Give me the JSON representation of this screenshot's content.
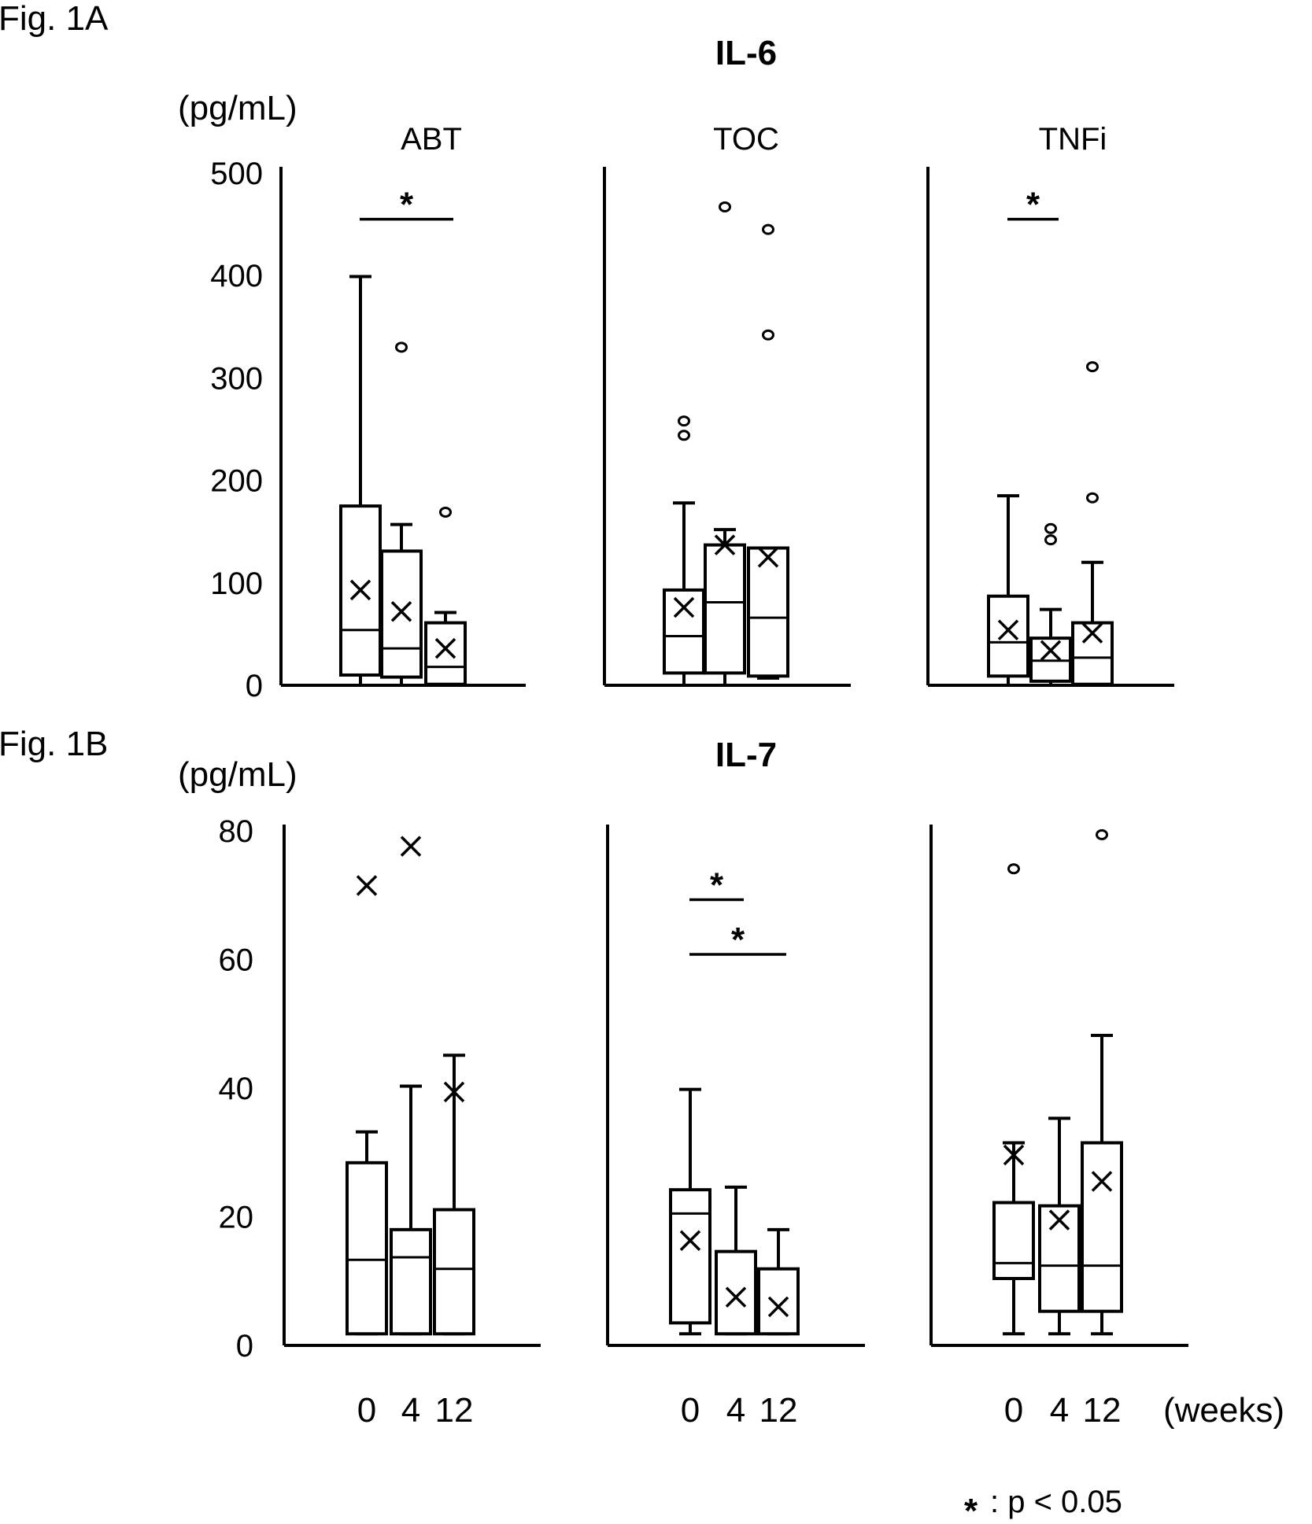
{
  "figure": {
    "fig_a_label": "Fig. 1A",
    "fig_b_label": "Fig. 1B",
    "x_unit_label": "(weeks)",
    "footnote_star": "*",
    "footnote_text": ": p < 0.05",
    "colors": {
      "ink": "#000000",
      "background": "#ffffff"
    }
  },
  "chart_data": [
    {
      "type": "box",
      "id": "A",
      "title": "IL-6",
      "ylabel": "(pg/mL)",
      "ylim": [
        0,
        500
      ],
      "yticks": [
        "0",
        "100",
        "200",
        "300",
        "400",
        "500"
      ],
      "ytick_values": [
        0,
        100,
        200,
        300,
        400,
        500
      ],
      "categories": [
        "0",
        "4",
        "12"
      ],
      "panels": [
        {
          "name": "ABT",
          "boxes": [
            {
              "week": "0",
              "min": 0,
              "q1": 10,
              "median": 54,
              "q3": 175,
              "max": 399,
              "mean": 93,
              "outliers": []
            },
            {
              "week": "4",
              "min": 0,
              "q1": 8,
              "median": 36,
              "q3": 131,
              "max": 157,
              "mean": 72,
              "outliers": [
                330
              ]
            },
            {
              "week": "12",
              "min": 0,
              "q1": 1,
              "median": 18,
              "q3": 61,
              "max": 71,
              "mean": 36,
              "outliers": [
                169
              ]
            }
          ],
          "significance": [
            {
              "from": 0,
              "to": 2,
              "level": 455,
              "label": "*"
            }
          ]
        },
        {
          "name": "TOC",
          "boxes": [
            {
              "week": "0",
              "min": 0,
              "q1": 12,
              "median": 48,
              "q3": 93,
              "max": 178,
              "mean": 76,
              "outliers": [
                244,
                258
              ]
            },
            {
              "week": "4",
              "min": 0,
              "q1": 12,
              "median": 81,
              "q3": 137,
              "max": 152,
              "mean": 137,
              "outliers": [
                467
              ]
            },
            {
              "week": "12",
              "min": 7,
              "q1": 9,
              "median": 66,
              "q3": 134,
              "max": 134,
              "mean": 125,
              "outliers": [
                342,
                445
              ]
            }
          ],
          "significance": []
        },
        {
          "name": "TNFi",
          "boxes": [
            {
              "week": "0",
              "min": 0,
              "q1": 9,
              "median": 42,
              "q3": 87,
              "max": 185,
              "mean": 54,
              "outliers": []
            },
            {
              "week": "4",
              "min": 0,
              "q1": 4,
              "median": 24,
              "q3": 46,
              "max": 74,
              "mean": 34,
              "outliers": [
                142,
                153
              ]
            },
            {
              "week": "12",
              "min": 0,
              "q1": 1,
              "median": 27,
              "q3": 61,
              "max": 120,
              "mean": 51,
              "outliers": [
                183,
                311
              ]
            }
          ],
          "significance": [
            {
              "from": 0,
              "to": 1,
              "level": 455,
              "label": "*"
            }
          ]
        }
      ]
    },
    {
      "type": "box",
      "id": "B",
      "title": "IL-7",
      "ylabel": "(pg/mL)",
      "ylim": [
        0,
        80
      ],
      "yticks": [
        "0",
        "20",
        "40",
        "60",
        "80"
      ],
      "ytick_values": [
        0,
        20,
        40,
        60,
        80
      ],
      "categories": [
        "0",
        "4",
        "12"
      ],
      "panels": [
        {
          "name": "ABT",
          "boxes": [
            {
              "week": "0",
              "min": 1.8,
              "q1": 1.8,
              "median": 13.3,
              "q3": 28.4,
              "max": 33.2,
              "mean": 71.5,
              "outliers": []
            },
            {
              "week": "4",
              "min": 1.8,
              "q1": 1.8,
              "median": 13.7,
              "q3": 18.0,
              "max": 40.3,
              "mean": 77.6,
              "outliers": []
            },
            {
              "week": "12",
              "min": 1.8,
              "q1": 1.8,
              "median": 11.9,
              "q3": 21.1,
              "max": 45.1,
              "mean": 39.4,
              "outliers": []
            }
          ],
          "significance": []
        },
        {
          "name": "TOC",
          "boxes": [
            {
              "week": "0",
              "min": 1.8,
              "q1": 3.5,
              "median": 20.5,
              "q3": 24.2,
              "max": 39.8,
              "mean": 16.3,
              "outliers": []
            },
            {
              "week": "4",
              "min": 1.8,
              "q1": 1.8,
              "median": 1.8,
              "q3": 14.6,
              "max": 24.6,
              "mean": 7.5,
              "outliers": []
            },
            {
              "week": "12",
              "min": 1.8,
              "q1": 1.8,
              "median": 1.8,
              "q3": 11.9,
              "max": 18.0,
              "mean": 6.0,
              "outliers": []
            }
          ],
          "significance": [
            {
              "from": 0,
              "to": 1,
              "level": 69.3,
              "label": "*"
            },
            {
              "from": 0,
              "to": 2,
              "level": 60.8,
              "label": "*"
            }
          ]
        },
        {
          "name": "TNFi",
          "boxes": [
            {
              "week": "0",
              "min": 1.8,
              "q1": 10.4,
              "median": 12.8,
              "q3": 22.2,
              "max": 31.5,
              "mean": 29.6,
              "outliers": [
                74.1
              ]
            },
            {
              "week": "4",
              "min": 1.8,
              "q1": 5.3,
              "median": 12.4,
              "q3": 21.7,
              "max": 35.3,
              "mean": 19.5,
              "outliers": []
            },
            {
              "week": "12",
              "min": 1.8,
              "q1": 5.3,
              "median": 12.4,
              "q3": 31.5,
              "max": 48.2,
              "mean": 25.5,
              "outliers": [
                79.4
              ]
            }
          ],
          "significance": []
        }
      ]
    }
  ]
}
